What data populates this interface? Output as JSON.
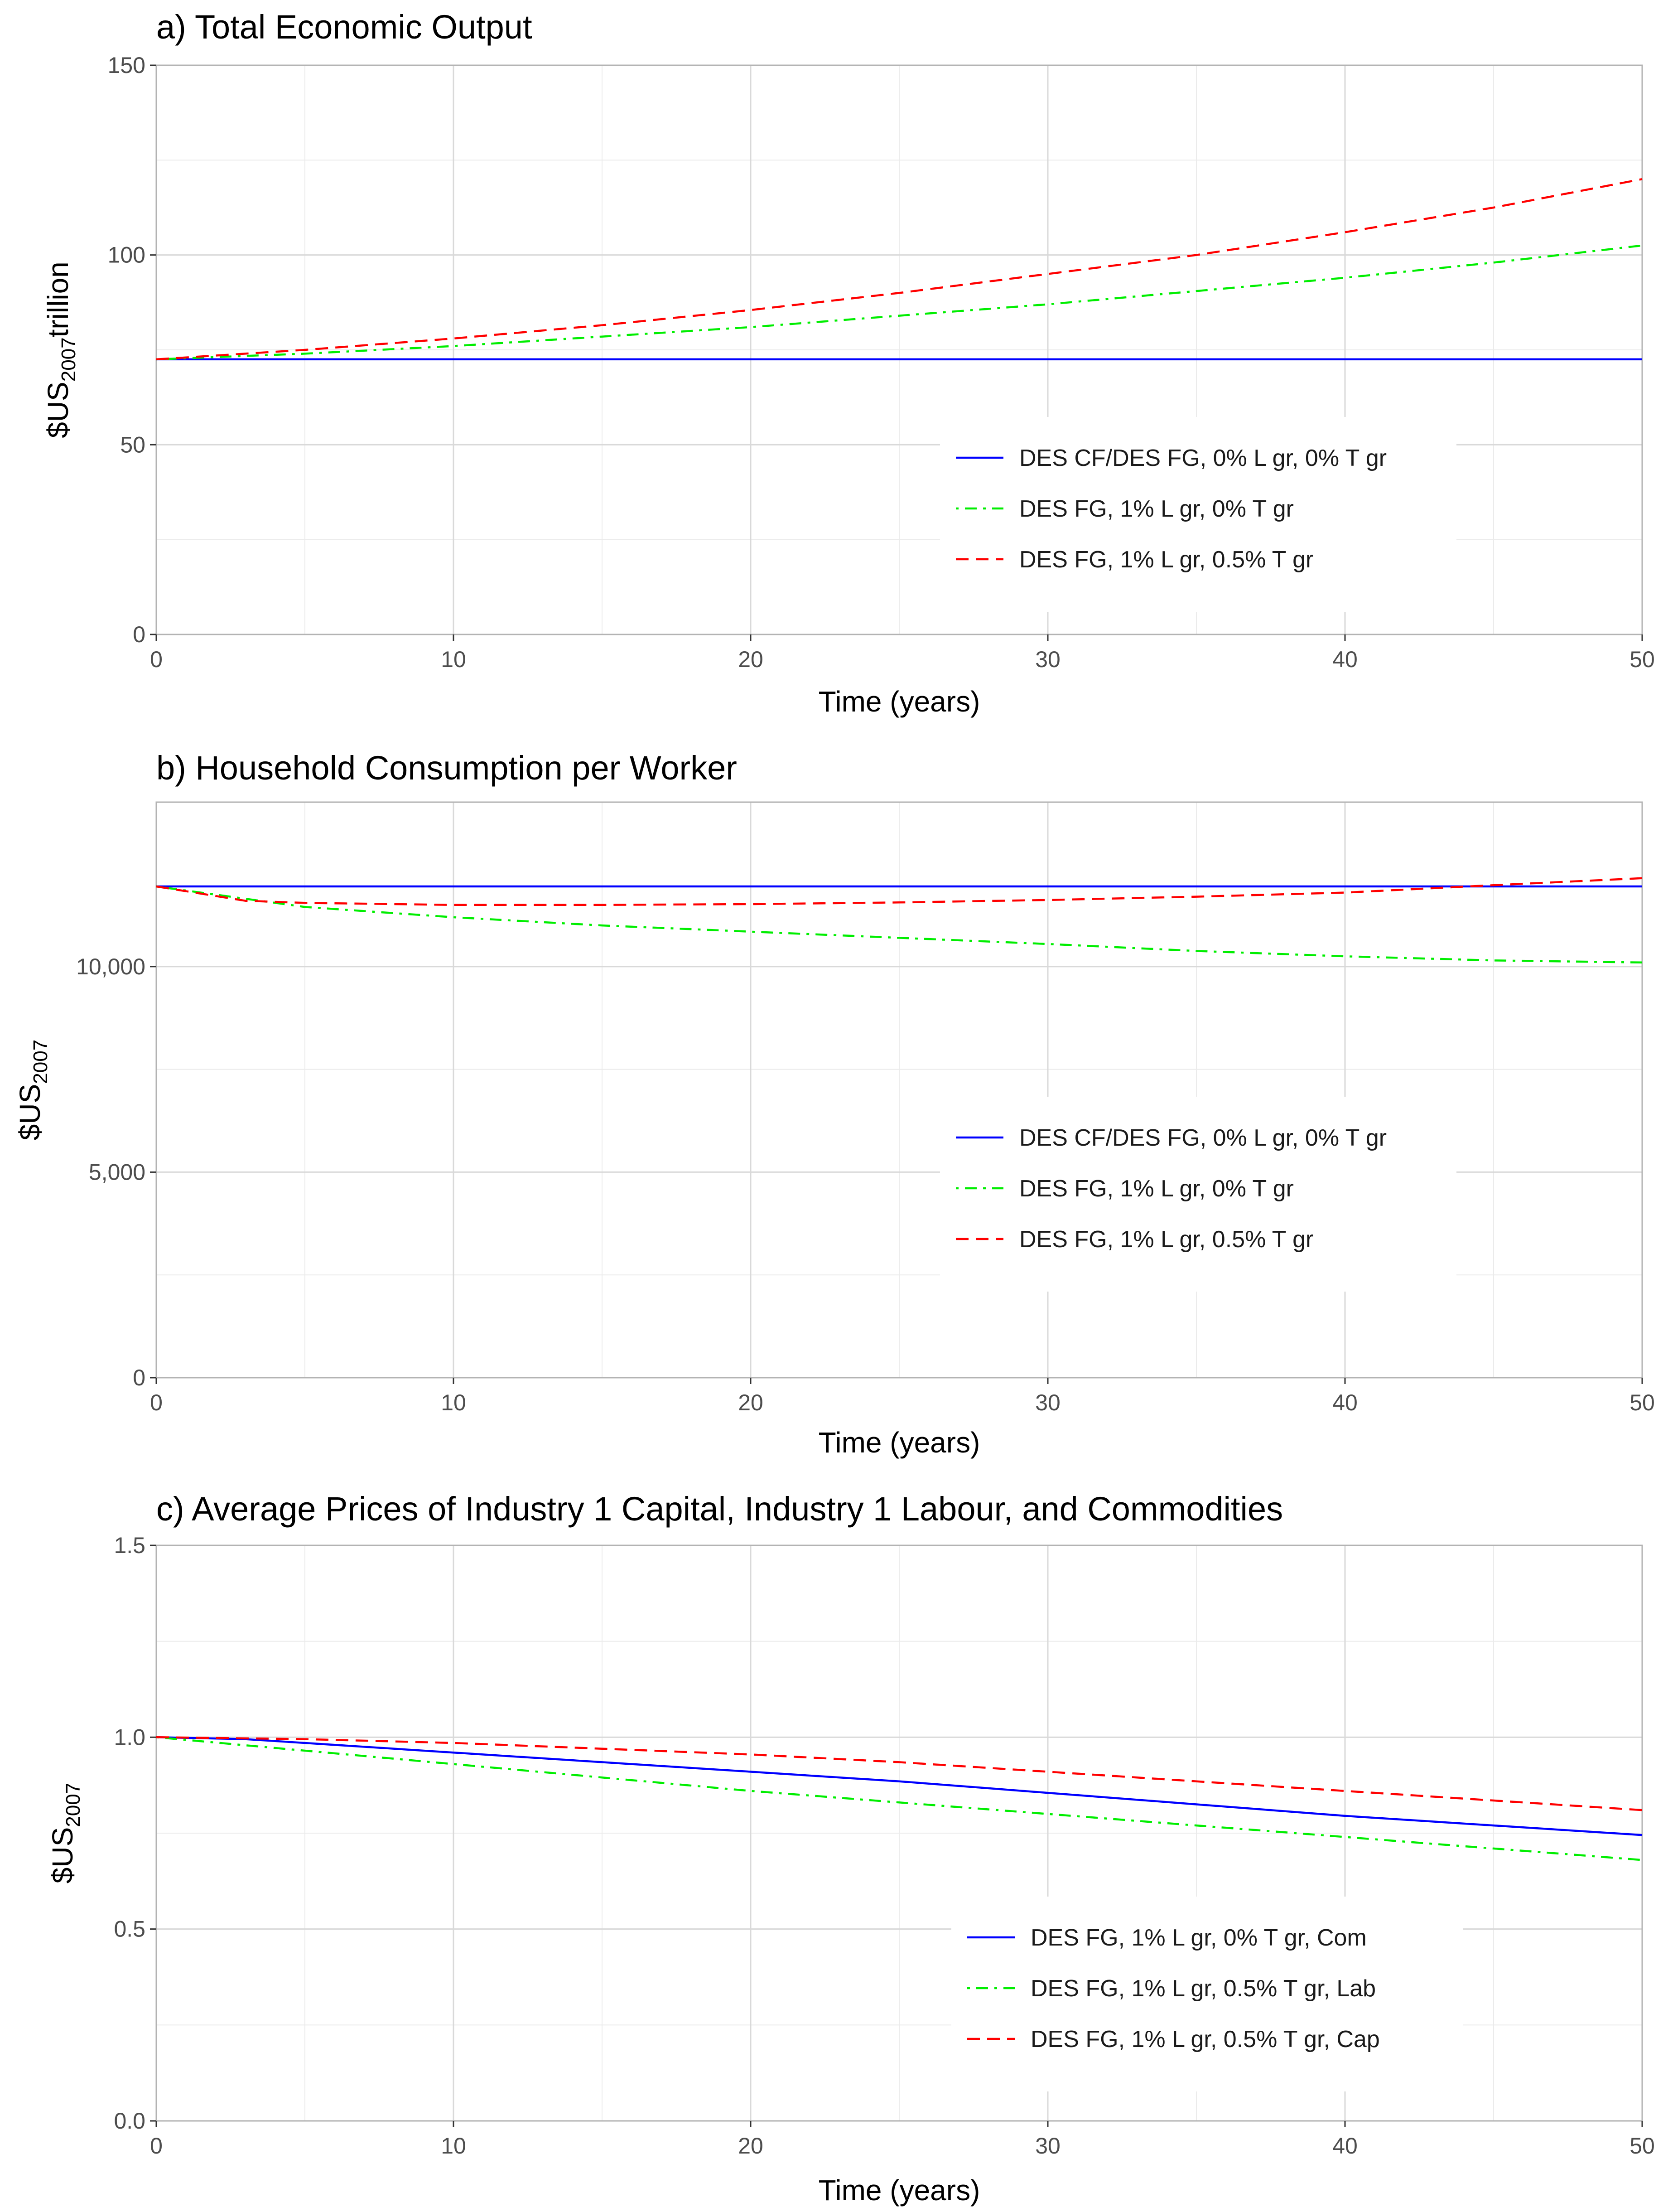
{
  "chart_data": [
    {
      "id": "a",
      "type": "line",
      "title": "a) Total Economic Output",
      "xlabel": "Time (years)",
      "ylabel": {
        "prefix": "$US",
        "subscript": "2007",
        "suffix": "trillion"
      },
      "xlim": [
        0,
        50
      ],
      "ylim": [
        0,
        150
      ],
      "xticks": [
        0,
        10,
        20,
        30,
        40,
        50
      ],
      "yticks": [
        0,
        50,
        100,
        150
      ],
      "ytick_labels": [
        "0",
        "50",
        "100",
        "150"
      ],
      "legend_position": "bottom-right",
      "series": [
        {
          "name": "DES CF/DES FG, 0% L gr, 0% T gr",
          "color": "#0000ff",
          "dash": "solid",
          "x": [
            0,
            10,
            20,
            30,
            40,
            50
          ],
          "y": [
            72.5,
            72.5,
            72.5,
            72.5,
            72.5,
            72.5
          ]
        },
        {
          "name": "DES FG, 1% L gr, 0% T gr",
          "color": "#00ee00",
          "dash": "dotdash",
          "x": [
            0,
            5,
            10,
            15,
            20,
            25,
            30,
            35,
            40,
            45,
            50
          ],
          "y": [
            72.5,
            74.0,
            76.0,
            78.5,
            81.0,
            84.0,
            87.0,
            90.5,
            94.0,
            98.0,
            102.5
          ]
        },
        {
          "name": "DES FG, 1% L gr, 0.5% T gr",
          "color": "#ff0000",
          "dash": "dashed",
          "x": [
            0,
            5,
            10,
            15,
            20,
            25,
            30,
            35,
            40,
            45,
            50
          ],
          "y": [
            72.5,
            75.0,
            78.0,
            81.5,
            85.5,
            90.0,
            95.0,
            100.0,
            106.0,
            112.5,
            120.0
          ]
        }
      ]
    },
    {
      "id": "b",
      "type": "line",
      "title": "b) Household Consumption per Worker",
      "xlabel": "Time (years)",
      "ylabel": {
        "prefix": "$US",
        "subscript": "2007",
        "suffix": ""
      },
      "xlim": [
        0,
        50
      ],
      "ylim": [
        0,
        14000
      ],
      "xticks": [
        0,
        10,
        20,
        30,
        40,
        50
      ],
      "yticks": [
        0,
        5000,
        10000
      ],
      "ytick_labels": [
        "0",
        "5,000",
        "10,000"
      ],
      "legend_position": "bottom-right",
      "series": [
        {
          "name": "DES CF/DES FG, 0% L gr, 0% T gr",
          "color": "#0000ff",
          "dash": "solid",
          "x": [
            0,
            10,
            20,
            30,
            40,
            50
          ],
          "y": [
            11950,
            11950,
            11950,
            11950,
            11950,
            11950
          ]
        },
        {
          "name": "DES FG, 1% L gr, 0% T gr",
          "color": "#00ee00",
          "dash": "dotdash",
          "x": [
            0,
            5,
            10,
            15,
            20,
            25,
            30,
            35,
            40,
            45,
            50
          ],
          "y": [
            11950,
            11450,
            11200,
            11000,
            10850,
            10700,
            10550,
            10380,
            10250,
            10150,
            10100
          ]
        },
        {
          "name": "DES FG, 1% L gr, 0.5% T gr",
          "color": "#ff0000",
          "dash": "dashed",
          "x": [
            0,
            3,
            5,
            10,
            15,
            20,
            25,
            30,
            35,
            40,
            45,
            50
          ],
          "y": [
            11950,
            11600,
            11550,
            11500,
            11500,
            11520,
            11560,
            11620,
            11700,
            11800,
            11980,
            12150
          ]
        }
      ]
    },
    {
      "id": "c",
      "type": "line",
      "title": "c) Average Prices of Industry 1 Capital, Industry 1 Labour, and Commodities",
      "xlabel": "Time (years)",
      "ylabel": {
        "prefix": "$US",
        "subscript": "2007",
        "suffix": ""
      },
      "xlim": [
        0,
        50
      ],
      "ylim": [
        0,
        1.5
      ],
      "xticks": [
        0,
        10,
        20,
        30,
        40,
        50
      ],
      "yticks": [
        0,
        0.5,
        1.0,
        1.5
      ],
      "ytick_labels": [
        "0.0",
        "0.5",
        "1.0",
        "1.5"
      ],
      "legend_position": "bottom-right",
      "series": [
        {
          "name": "DES FG, 1% L gr, 0% T gr, Com",
          "color": "#0000ff",
          "dash": "solid",
          "x": [
            0,
            3,
            5,
            10,
            15,
            20,
            25,
            30,
            35,
            40,
            45,
            50
          ],
          "y": [
            1.0,
            0.995,
            0.985,
            0.96,
            0.935,
            0.91,
            0.885,
            0.855,
            0.825,
            0.795,
            0.77,
            0.745
          ]
        },
        {
          "name": "DES FG, 1% L gr, 0.5% T gr, Lab",
          "color": "#00ee00",
          "dash": "dotdash",
          "x": [
            0,
            5,
            10,
            15,
            20,
            25,
            30,
            35,
            40,
            45,
            50
          ],
          "y": [
            1.0,
            0.965,
            0.93,
            0.895,
            0.86,
            0.83,
            0.8,
            0.77,
            0.74,
            0.71,
            0.68
          ]
        },
        {
          "name": "DES FG, 1% L gr, 0.5% T gr, Cap",
          "color": "#ff0000",
          "dash": "dashed",
          "x": [
            0,
            5,
            10,
            15,
            20,
            25,
            30,
            35,
            40,
            45,
            50
          ],
          "y": [
            1.0,
            0.995,
            0.985,
            0.97,
            0.955,
            0.935,
            0.91,
            0.885,
            0.86,
            0.835,
            0.81
          ]
        }
      ]
    }
  ]
}
